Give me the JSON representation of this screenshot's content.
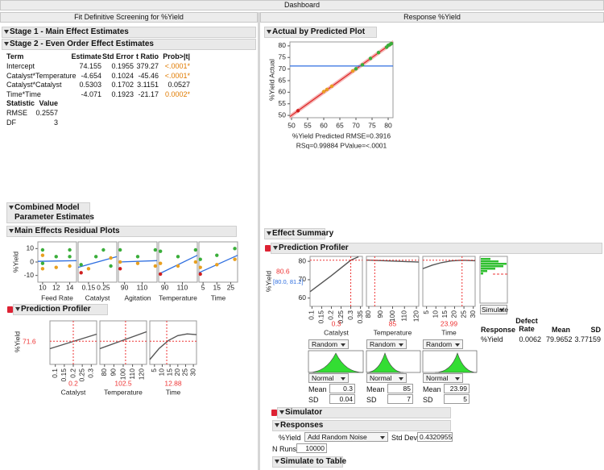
{
  "window_title": "Dashboard",
  "left": {
    "title": "Fit Definitive Screening for %Yield",
    "stage1": "Stage 1 - Main Effect Estimates",
    "stage2": "Stage 2 - Even Order Effect Estimates",
    "estimates": {
      "columns": [
        "Term",
        "Estimate",
        "Std Error",
        "t Ratio",
        "Prob>|t|"
      ],
      "rows": [
        [
          "Intercept",
          "74.155",
          "0.1955",
          "379.27",
          "<.0001*"
        ],
        [
          "Catalyst*Temperature",
          "-4.654",
          "0.1024",
          "-45.46",
          "<.0001*"
        ],
        [
          "Catalyst*Catalyst",
          "0.5303",
          "0.1702",
          "3.1151",
          "0.0527"
        ],
        [
          "Time*Time",
          "-4.071",
          "0.1923",
          "-21.17",
          "0.0002*"
        ]
      ],
      "significant": [
        true,
        true,
        false,
        true
      ],
      "significant_color": "#e07b00"
    },
    "stats": {
      "columns": [
        "Statistic",
        "Value"
      ],
      "rows": [
        [
          "RMSE",
          "0.2557"
        ],
        [
          "DF",
          "3"
        ]
      ]
    },
    "combined": [
      "Combined Model",
      "Parameter Estimates"
    ],
    "residuals": {
      "title": "Main Effects Residual Plots",
      "y_label": "%Yield",
      "ylim": [
        -15,
        15
      ],
      "yticks": [
        10,
        0,
        -10
      ],
      "fit_color": "#2f6fe0",
      "panels": [
        {
          "label": "Feed Rate",
          "xlim": [
            9.3,
            15
          ],
          "xticks": [
            10,
            12,
            14
          ],
          "fit": [
            0.5,
            1
          ],
          "x": [
            10,
            10,
            10,
            10,
            12,
            12,
            14,
            14,
            14
          ],
          "y": [
            9,
            5,
            -1,
            -5,
            4,
            -4,
            9,
            4,
            -3
          ],
          "colors": [
            "#3aae3a",
            "#e8a020",
            "#3aae3a",
            "#e8a020",
            "#3aae3a",
            "#e8a020",
            "#3aae3a",
            "#3aae3a",
            "#e8a020"
          ]
        },
        {
          "label": "Catalyst",
          "xlim": [
            0.08,
            0.34
          ],
          "xticks": [
            0.15,
            0.25
          ],
          "fit": [
            -4,
            4
          ],
          "x": [
            0.1,
            0.1,
            0.15,
            0.2,
            0.25,
            0.3,
            0.3
          ],
          "y": [
            -8,
            -2,
            -5,
            4,
            9,
            3,
            -3
          ],
          "colors": [
            "#d02020",
            "#3aae3a",
            "#e8a020",
            "#3aae3a",
            "#3aae3a",
            "#e8a020",
            "#3aae3a"
          ]
        },
        {
          "label": "Agitation",
          "xlim": [
            83,
            127
          ],
          "xticks": [
            90,
            110
          ],
          "fit": [
            0,
            1
          ],
          "x": [
            85,
            85,
            85,
            105,
            105,
            125,
            125
          ],
          "y": [
            9,
            0,
            -5,
            4,
            -1,
            9,
            -3
          ],
          "colors": [
            "#3aae3a",
            "#e8a020",
            "#d02020",
            "#3aae3a",
            "#e8a020",
            "#3aae3a",
            "#e8a020"
          ]
        },
        {
          "label": "Temperature",
          "xlim": [
            83,
            127
          ],
          "xticks": [
            90,
            110
          ],
          "fit": [
            -9,
            5
          ],
          "x": [
            85,
            85,
            85,
            105,
            105,
            125,
            125
          ],
          "y": [
            8,
            -1,
            -9,
            4,
            -3,
            9,
            0
          ],
          "colors": [
            "#3aae3a",
            "#e8a020",
            "#d02020",
            "#3aae3a",
            "#e8a020",
            "#3aae3a",
            "#e8a020"
          ]
        },
        {
          "label": "Time",
          "xlim": [
            2,
            30
          ],
          "xticks": [
            5,
            15,
            25
          ],
          "fit": [
            -8,
            5
          ],
          "x": [
            3,
            3,
            3,
            15,
            15,
            28,
            28
          ],
          "y": [
            -4,
            -9,
            2,
            5,
            -2,
            10,
            2
          ],
          "colors": [
            "#e8a020",
            "#d02020",
            "#3aae3a",
            "#3aae3a",
            "#e8a020",
            "#3aae3a",
            "#e8a020"
          ]
        }
      ]
    },
    "profiler": {
      "title": "Prediction Profiler",
      "y_label": "%Yield",
      "y_value": 71.6,
      "ylim": [
        62,
        80
      ],
      "factors": [
        {
          "label": "Catalyst",
          "value": 0.2,
          "xlim": [
            0.07,
            0.33
          ],
          "xticks": [
            0.1,
            0.15,
            0.2,
            0.25,
            0.3
          ],
          "curve_x": [
            0.07,
            0.33
          ],
          "curve_y": [
            68.5,
            74.5
          ]
        },
        {
          "label": "Temperature",
          "value": 102.5,
          "xlim": [
            75,
            125
          ],
          "xticks": [
            80,
            90,
            100,
            110,
            120
          ],
          "curve_x": [
            75,
            125
          ],
          "curve_y": [
            68.5,
            75.5
          ]
        },
        {
          "label": "Time",
          "value": 12.88,
          "xlim": [
            2,
            32
          ],
          "xticks": [
            5,
            10,
            15,
            20,
            25,
            30
          ],
          "curve_x": [
            2,
            8,
            14,
            20,
            26,
            32
          ],
          "curve_y": [
            64,
            68.6,
            71.9,
            73.9,
            74.6,
            74.3
          ]
        }
      ]
    }
  },
  "right": {
    "title": "Response %Yield",
    "avp": {
      "title": "Actual by Predicted Plot",
      "y_label": "%Yield Actual",
      "x_label": "%Yield Predicted RMSE=0.3916",
      "stats_label": "RSq=0.99884 PValue=<.0001",
      "xlim": [
        49.5,
        81.5
      ],
      "ylim": [
        49,
        81.7
      ],
      "xticks": [
        50,
        55,
        60,
        65,
        70,
        75,
        80
      ],
      "yticks": [
        50,
        55,
        60,
        65,
        70,
        75,
        80
      ],
      "mean": 71.3,
      "x": [
        52,
        60,
        61,
        62.5,
        69,
        70,
        72,
        74.5,
        77,
        79.5,
        80,
        80.5,
        81
      ],
      "y": [
        52,
        60.3,
        61.2,
        62.6,
        69.2,
        70.1,
        71.8,
        74.6,
        77.1,
        79.4,
        80.2,
        80.5,
        81
      ],
      "colors": [
        "#d02020",
        "#e8a020",
        "#e8a020",
        "#e8a020",
        "#e8a020",
        "#3aae3a",
        "#3aae3a",
        "#3aae3a",
        "#3aae3a",
        "#3aae3a",
        "#3aae3a",
        "#3aae3a",
        "#3aae3a"
      ]
    },
    "effect_summary": "Effect Summary",
    "profiler": {
      "title": "Prediction Profiler",
      "y_label": "%Yield",
      "y_value": 80.6,
      "interval": "[80.0, 81.2]",
      "ylim": [
        55.5,
        82.7
      ],
      "yticks": [
        80,
        70,
        60
      ],
      "button": "Simulate",
      "mean_label": "Mean",
      "sd_label": "SD",
      "factors": [
        {
          "label": "Catalyst",
          "value": 0.3,
          "xlim": [
            0.09,
            0.36
          ],
          "xticks": [
            0.1,
            0.15,
            0.2,
            0.25,
            0.3,
            0.35
          ],
          "curve_x": [
            0.09,
            0.2,
            0.3,
            0.34
          ],
          "curve_y": [
            63.5,
            72.2,
            80.6,
            82.5
          ],
          "random": "Random",
          "dist": "Normal",
          "mean": "0.3",
          "sd": "0.04"
        },
        {
          "label": "Temperature",
          "value": 85,
          "xlim": [
            78,
            122
          ],
          "xticks": [
            80,
            90,
            100,
            110,
            120
          ],
          "curve_x": [
            78,
            122
          ],
          "curve_y": [
            80.7,
            79.6
          ],
          "random": "Random",
          "dist": "Normal",
          "mean": "85",
          "sd": "7"
        },
        {
          "label": "Time",
          "value": 23.99,
          "xlim": [
            3,
            31
          ],
          "xticks": [
            5,
            10,
            15,
            20,
            25,
            30
          ],
          "curve_x": [
            3,
            8,
            13,
            18,
            23.99,
            31
          ],
          "curve_y": [
            76,
            77.9,
            79.3,
            80.2,
            80.6,
            80.3
          ],
          "random": "Random",
          "dist": "Normal",
          "mean": "23.99",
          "sd": "5"
        }
      ]
    },
    "sim_table": {
      "columns": [
        "Response",
        "Defect Rate",
        "Mean",
        "SD"
      ],
      "rows": [
        [
          "%Yield",
          "0.0062",
          "79.9652",
          "3.77159"
        ]
      ]
    },
    "simulator": {
      "title": "Simulator",
      "responses": "Responses",
      "response": "%Yield",
      "noise": "Add Random Noise",
      "std_dev_label": "Std Dev:",
      "std_dev": "0.4320955",
      "n_runs_label": "N Runs:",
      "n_runs": "10000",
      "to_table": "Simulate to Table"
    }
  }
}
